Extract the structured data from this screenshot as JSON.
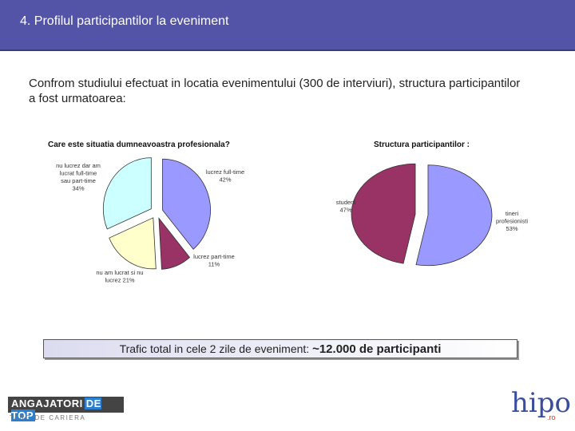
{
  "header": {
    "title": "4. Profilul participantilor la eveniment"
  },
  "intro_text": "Confrom studiului efectuat in locatia evenimentului (300 de interviuri), structura participantilor a fost urmatoarea:",
  "chart_data": [
    {
      "type": "pie",
      "title": "Care este situatia dumneavoastra profesionala?",
      "slices": [
        {
          "lines": [
            "lucrez full-time",
            "42%"
          ],
          "value": 42,
          "color": "#9999ff"
        },
        {
          "lines": [
            "lucrez part-time",
            "11%"
          ],
          "value": 11,
          "color": "#993366"
        },
        {
          "lines": [
            "nu am lucrat si nu",
            "lucrez 21%"
          ],
          "value": 21,
          "color": "#ffffcc"
        },
        {
          "lines": [
            "nu lucrez dar am",
            "lucrat full-time",
            "sau part-time",
            "34%"
          ],
          "value": 34,
          "color": "#ccffff"
        }
      ]
    },
    {
      "type": "pie",
      "title": "Structura participantilor :",
      "slices": [
        {
          "lines": [
            "tineri",
            "profesionisti",
            "53%"
          ],
          "value": 53,
          "color": "#9999ff"
        },
        {
          "lines": [
            "student",
            "47%"
          ],
          "value": 47,
          "color": "#993366"
        }
      ]
    }
  ],
  "traffic": {
    "prefix": "Trafic total in cele 2 zile de eveniment:",
    "value": "~12.000 de participanti"
  },
  "logo_left": {
    "main": "ANGAJATORI",
    "accent": "DE TOP",
    "sub": "TARG DE CARIERA"
  },
  "logo_right": {
    "text": "hipo",
    "suffix": ".ro"
  }
}
